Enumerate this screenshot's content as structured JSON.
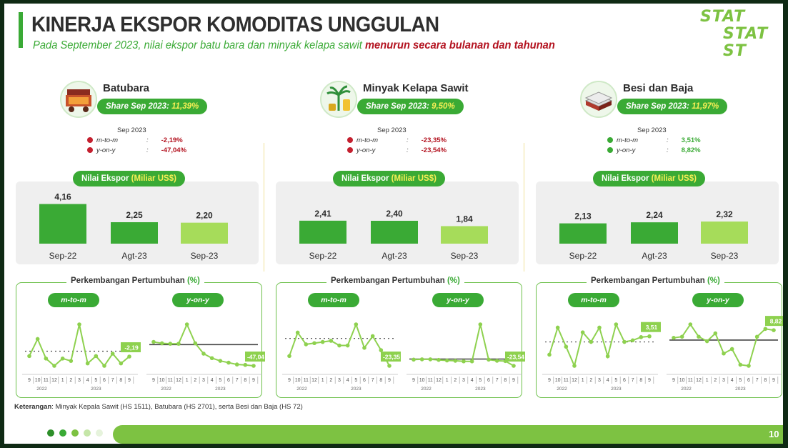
{
  "header": {
    "title": "KINERJA EKSPOR KOMODITAS UNGGULAN",
    "subtitle_prefix": "Pada September 2023, nilai ekspor batu bara dan minyak kelapa sawit",
    "subtitle_highlight": "menurun secara bulanan dan tahunan",
    "logo_rows": [
      "STAT",
      "STAT",
      "ST"
    ]
  },
  "labels": {
    "share_prefix": "Share Sep 2023:",
    "sep_label": "Sep 2023",
    "mtm": "m-to-m",
    "yoy": "y-on-y",
    "nilai_prefix": "Nilai Ekspor",
    "nilai_unit": "(Miliar US$)",
    "growth_title": "Perkembangan Pertumbuhan",
    "growth_unit": "(%)",
    "axis_months": [
      "9",
      "10",
      "11",
      "12",
      "1",
      "2",
      "3",
      "4",
      "5",
      "6",
      "7",
      "8",
      "9"
    ],
    "axis_year1": "2022",
    "axis_year2": "2023"
  },
  "commodities": [
    {
      "name": "Batubara",
      "share": "11,39%",
      "mtm_text": "-2,19%",
      "yoy_text": "-47,04%",
      "mtm_trend": "neg",
      "yoy_trend": "neg",
      "icon": "coal-cart-icon"
    },
    {
      "name": "Minyak Kelapa Sawit",
      "share": "9,50%",
      "mtm_text": "-23,35%",
      "yoy_text": "-23,54%",
      "mtm_trend": "neg",
      "yoy_trend": "neg",
      "icon": "palm-oil-icon"
    },
    {
      "name": "Besi dan Baja",
      "share": "11,97%",
      "mtm_text": "3,51%",
      "yoy_text": "8,82%",
      "mtm_trend": "pos",
      "yoy_trend": "pos",
      "icon": "steel-sheets-icon"
    }
  ],
  "note": {
    "label": "Keterangan",
    "text": ": Minyak Kepala Sawit (HS 1511), Batubara (HS 2701), serta Besi dan Baja (HS 72)"
  },
  "footer": {
    "page": "10"
  },
  "colors": {
    "green": "#3aaa35",
    "light_green": "#7dc242",
    "pale_green": "#a6dc5a",
    "red": "#b3121f",
    "yellow": "#f6ef55"
  },
  "chart_data": [
    {
      "type": "bar",
      "commodity": "Batubara",
      "categories": [
        "Sep-22",
        "Agt-23",
        "Sep-23"
      ],
      "values": [
        4.16,
        2.25,
        2.2
      ],
      "value_labels": [
        "4,16",
        "2,25",
        "2,20"
      ],
      "ylim": [
        0,
        4.2
      ]
    },
    {
      "type": "bar",
      "commodity": "Minyak Kelapa Sawit",
      "categories": [
        "Sep-22",
        "Agt-23",
        "Sep-23"
      ],
      "values": [
        2.41,
        2.4,
        1.84
      ],
      "value_labels": [
        "2,41",
        "2,40",
        "1,84"
      ],
      "ylim": [
        0,
        4.2
      ]
    },
    {
      "type": "bar",
      "commodity": "Besi dan Baja",
      "categories": [
        "Sep-22",
        "Agt-23",
        "Sep-23"
      ],
      "values": [
        2.13,
        2.24,
        2.32
      ],
      "value_labels": [
        "2,13",
        "2,24",
        "2,32"
      ],
      "ylim": [
        0,
        4.2
      ]
    },
    {
      "type": "line",
      "commodity": "Batubara",
      "series": "m-to-m",
      "x": [
        "9",
        "10",
        "11",
        "12",
        "1",
        "2",
        "3",
        "4",
        "5",
        "6",
        "7",
        "8",
        "9"
      ],
      "values": [
        -2,
        5,
        -3,
        -6,
        -3,
        -4,
        11,
        -5,
        -2,
        -6,
        -1,
        -5,
        -2.19
      ],
      "last_label": "-2,19"
    },
    {
      "type": "line",
      "commodity": "Batubara",
      "series": "y-on-y",
      "x": [
        "9",
        "10",
        "11",
        "12",
        "1",
        "2",
        "3",
        "4",
        "5",
        "6",
        "7",
        "8",
        "9"
      ],
      "values": [
        6,
        3,
        2,
        2,
        45,
        3,
        -20,
        -30,
        -36,
        -40,
        -44,
        -45,
        -47.04
      ],
      "last_label": "-47,04"
    },
    {
      "type": "line",
      "commodity": "Minyak Kelapa Sawit",
      "series": "m-to-m",
      "x": [
        "9",
        "10",
        "11",
        "12",
        "1",
        "2",
        "3",
        "4",
        "5",
        "6",
        "7",
        "8",
        "9"
      ],
      "values": [
        -15,
        5,
        -5,
        -4,
        -3,
        -2,
        -6,
        -6,
        12,
        -8,
        2,
        -10,
        -23.35
      ],
      "last_label": "-23,35"
    },
    {
      "type": "line",
      "commodity": "Minyak Kelapa Sawit",
      "series": "y-on-y",
      "x": [
        "9",
        "10",
        "11",
        "12",
        "1",
        "2",
        "3",
        "4",
        "5",
        "6",
        "7",
        "8",
        "9"
      ],
      "values": [
        -2,
        -1,
        -1,
        -3,
        -5,
        -6,
        -8,
        -8,
        120,
        -2,
        -6,
        -7,
        -23.54
      ],
      "last_label": "-23,54"
    },
    {
      "type": "line",
      "commodity": "Besi dan Baja",
      "series": "m-to-m",
      "x": [
        "9",
        "10",
        "11",
        "12",
        "1",
        "2",
        "3",
        "4",
        "5",
        "6",
        "7",
        "8",
        "9"
      ],
      "values": [
        -8,
        9,
        -3,
        -15,
        6,
        0,
        9,
        -9,
        11,
        0,
        1,
        3,
        3.51
      ],
      "last_label": "3,51"
    },
    {
      "type": "line",
      "commodity": "Besi dan Baja",
      "series": "y-on-y",
      "x": [
        "9",
        "10",
        "11",
        "12",
        "1",
        "2",
        "3",
        "4",
        "5",
        "6",
        "7",
        "8",
        "9"
      ],
      "values": [
        2,
        3,
        14,
        3,
        -1,
        6,
        -12,
        -8,
        -22,
        -23,
        3,
        10,
        8.82
      ],
      "last_label": "8,82"
    }
  ]
}
